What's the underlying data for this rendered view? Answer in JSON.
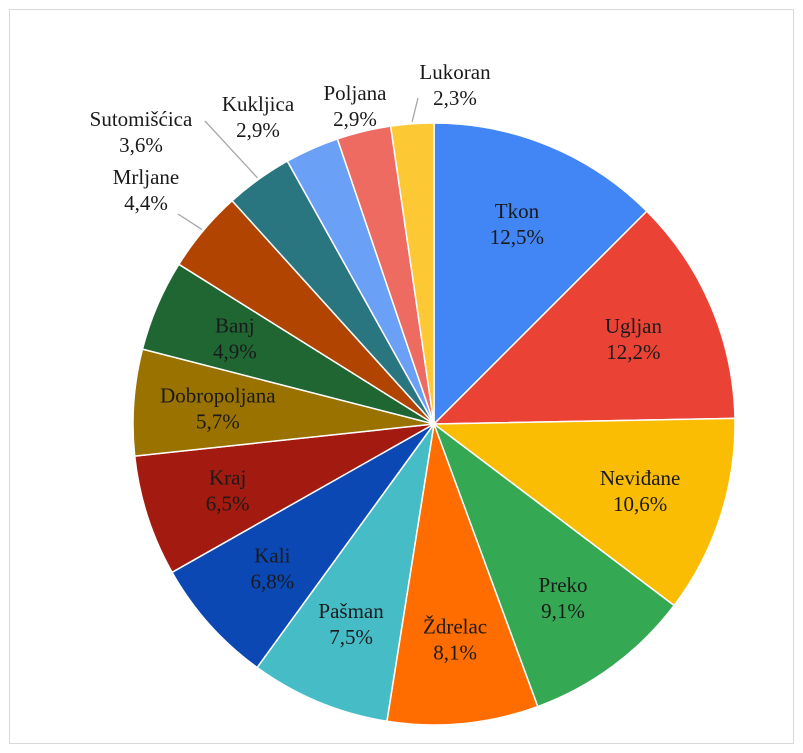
{
  "chart_data": {
    "type": "pie",
    "start_angle_deg": 0,
    "direction": "clockwise",
    "legend": "none",
    "slices": [
      {
        "label": "Tkon",
        "value": 12.5,
        "value_label": "12,5%",
        "color": "#4285f4",
        "label_placement": "inside"
      },
      {
        "label": "Ugljan",
        "value": 12.2,
        "value_label": "12,2%",
        "color": "#ea4335",
        "label_placement": "inside"
      },
      {
        "label": "Neviđane",
        "value": 10.6,
        "value_label": "10,6%",
        "color": "#fbbc04",
        "label_placement": "inside"
      },
      {
        "label": "Preko",
        "value": 9.1,
        "value_label": "9,1%",
        "color": "#34a853",
        "label_placement": "inside"
      },
      {
        "label": "Ždrelac",
        "value": 8.1,
        "value_label": "8,1%",
        "color": "#ff6d01",
        "label_placement": "inside"
      },
      {
        "label": "Pašman",
        "value": 7.5,
        "value_label": "7,5%",
        "color": "#46bdc6",
        "label_placement": "inside"
      },
      {
        "label": "Kali",
        "value": 6.8,
        "value_label": "6,8%",
        "color": "#0b48b4",
        "label_placement": "inside"
      },
      {
        "label": "Kraj",
        "value": 6.5,
        "value_label": "6,5%",
        "color": "#a31b10",
        "label_placement": "inside"
      },
      {
        "label": "Dobropoljana",
        "value": 5.7,
        "value_label": "5,7%",
        "color": "#997200",
        "label_placement": "inside"
      },
      {
        "label": "Banj",
        "value": 4.9,
        "value_label": "4,9%",
        "color": "#1f6633",
        "label_placement": "inside"
      },
      {
        "label": "Mrljane",
        "value": 4.4,
        "value_label": "4,4%",
        "color": "#b24401",
        "label_placement": "outside"
      },
      {
        "label": "Sutomišćica",
        "value": 3.6,
        "value_label": "3,6%",
        "color": "#2a7680",
        "label_placement": "outside"
      },
      {
        "label": "Kukljica",
        "value": 2.9,
        "value_label": "2,9%",
        "color": "#6aa0f6",
        "label_placement": "outside"
      },
      {
        "label": "Poljana",
        "value": 2.9,
        "value_label": "2,9%",
        "color": "#ee6b62",
        "label_placement": "outside"
      },
      {
        "label": "Lukoran",
        "value": 2.3,
        "value_label": "2,3%",
        "color": "#fcc934",
        "label_placement": "outside"
      }
    ]
  }
}
